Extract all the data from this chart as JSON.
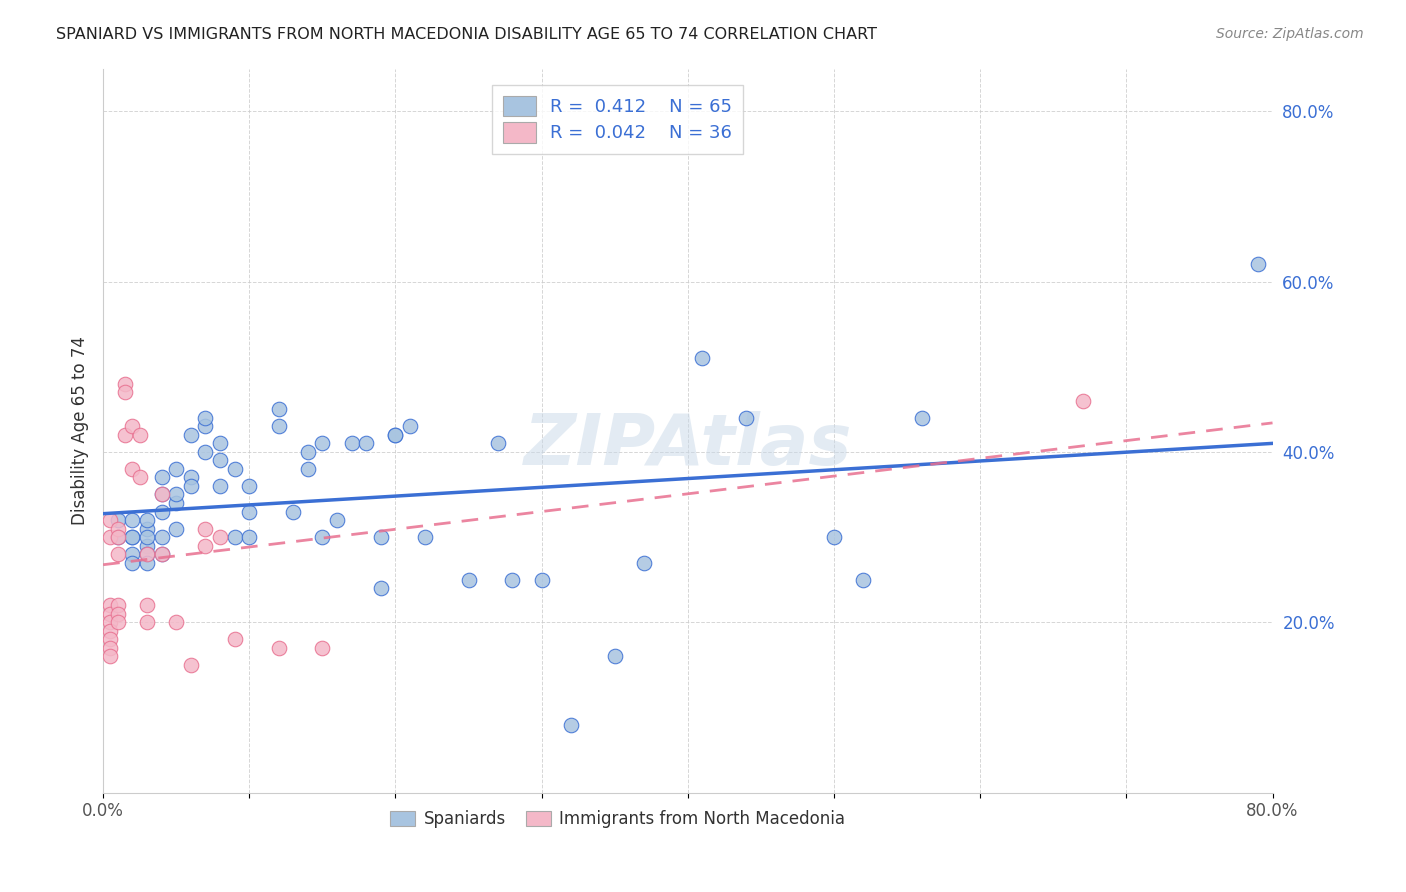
{
  "title": "SPANIARD VS IMMIGRANTS FROM NORTH MACEDONIA DISABILITY AGE 65 TO 74 CORRELATION CHART",
  "source": "Source: ZipAtlas.com",
  "ylabel": "Disability Age 65 to 74",
  "xlim": [
    0.0,
    0.8
  ],
  "ylim": [
    0.0,
    0.85
  ],
  "spaniards_R": 0.412,
  "spaniards_N": 65,
  "immigrants_R": 0.042,
  "immigrants_N": 36,
  "spaniards_color": "#a8c4e0",
  "immigrants_color": "#f4b8c8",
  "spaniards_line_color": "#3b6fd4",
  "immigrants_line_color": "#e87090",
  "watermark": "ZIPAtlas",
  "spaniards_x": [
    0.01,
    0.01,
    0.02,
    0.02,
    0.02,
    0.02,
    0.02,
    0.03,
    0.03,
    0.03,
    0.03,
    0.03,
    0.03,
    0.04,
    0.04,
    0.04,
    0.04,
    0.04,
    0.05,
    0.05,
    0.05,
    0.05,
    0.06,
    0.06,
    0.06,
    0.07,
    0.07,
    0.07,
    0.08,
    0.08,
    0.08,
    0.09,
    0.09,
    0.1,
    0.1,
    0.1,
    0.12,
    0.12,
    0.13,
    0.14,
    0.14,
    0.15,
    0.15,
    0.16,
    0.17,
    0.18,
    0.19,
    0.19,
    0.2,
    0.2,
    0.21,
    0.22,
    0.25,
    0.27,
    0.28,
    0.3,
    0.32,
    0.35,
    0.37,
    0.41,
    0.44,
    0.5,
    0.52,
    0.56,
    0.79
  ],
  "spaniards_y": [
    0.3,
    0.32,
    0.3,
    0.32,
    0.28,
    0.27,
    0.3,
    0.29,
    0.31,
    0.28,
    0.27,
    0.32,
    0.3,
    0.35,
    0.37,
    0.33,
    0.3,
    0.28,
    0.34,
    0.38,
    0.35,
    0.31,
    0.42,
    0.37,
    0.36,
    0.43,
    0.44,
    0.4,
    0.36,
    0.39,
    0.41,
    0.3,
    0.38,
    0.3,
    0.33,
    0.36,
    0.45,
    0.43,
    0.33,
    0.38,
    0.4,
    0.41,
    0.3,
    0.32,
    0.41,
    0.41,
    0.24,
    0.3,
    0.42,
    0.42,
    0.43,
    0.3,
    0.25,
    0.41,
    0.25,
    0.25,
    0.08,
    0.16,
    0.27,
    0.51,
    0.44,
    0.3,
    0.25,
    0.44,
    0.62
  ],
  "immigrants_x": [
    0.005,
    0.005,
    0.005,
    0.005,
    0.005,
    0.005,
    0.005,
    0.005,
    0.005,
    0.01,
    0.01,
    0.01,
    0.01,
    0.01,
    0.01,
    0.015,
    0.015,
    0.015,
    0.02,
    0.02,
    0.025,
    0.025,
    0.03,
    0.03,
    0.03,
    0.04,
    0.04,
    0.05,
    0.06,
    0.07,
    0.07,
    0.08,
    0.09,
    0.12,
    0.15,
    0.67
  ],
  "immigrants_y": [
    0.3,
    0.32,
    0.22,
    0.21,
    0.2,
    0.19,
    0.18,
    0.17,
    0.16,
    0.31,
    0.3,
    0.28,
    0.22,
    0.21,
    0.2,
    0.48,
    0.47,
    0.42,
    0.43,
    0.38,
    0.42,
    0.37,
    0.28,
    0.22,
    0.2,
    0.35,
    0.28,
    0.2,
    0.15,
    0.31,
    0.29,
    0.3,
    0.18,
    0.17,
    0.17,
    0.46
  ]
}
